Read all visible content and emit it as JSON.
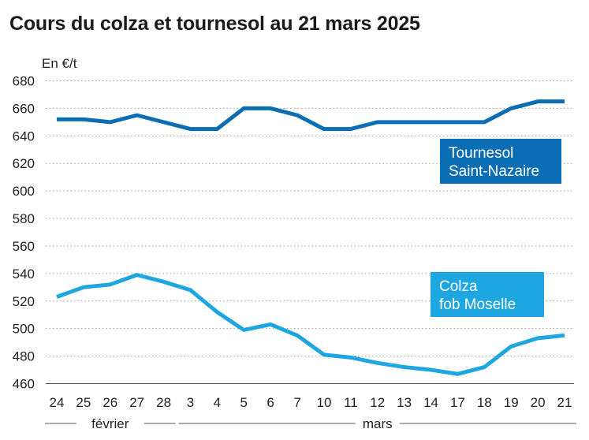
{
  "chart_data": {
    "type": "line",
    "title": "Cours du colza et tournesol au 21 mars 2025",
    "ylabel": "En €/t",
    "ylim": [
      460,
      680
    ],
    "yticks": [
      460,
      480,
      500,
      520,
      540,
      560,
      580,
      600,
      620,
      640,
      660,
      680
    ],
    "grid": "horizontal dotted",
    "categories": [
      "24",
      "25",
      "26",
      "27",
      "28",
      "3",
      "4",
      "5",
      "6",
      "7",
      "10",
      "11",
      "12",
      "13",
      "14",
      "17",
      "18",
      "19",
      "20",
      "21"
    ],
    "months": [
      {
        "label": "février",
        "from": 0,
        "to": 4
      },
      {
        "label": "mars",
        "from": 5,
        "to": 19
      }
    ],
    "series": [
      {
        "name": "Tournesol Saint-Nazaire",
        "label_lines": [
          "Tournesol",
          "Saint-Nazaire"
        ],
        "color": "#0b6db3",
        "values": [
          652,
          652,
          650,
          655,
          650,
          645,
          645,
          660,
          660,
          655,
          645,
          645,
          650,
          650,
          650,
          650,
          650,
          660,
          665,
          665
        ]
      },
      {
        "name": "Colza fob Moselle",
        "label_lines": [
          "Colza",
          "fob Moselle"
        ],
        "color": "#1ea6e0",
        "values": [
          523,
          530,
          532,
          539,
          534,
          528,
          512,
          499,
          503,
          495,
          481,
          479,
          475,
          472,
          470,
          467,
          472,
          487,
          493,
          495
        ]
      }
    ]
  }
}
